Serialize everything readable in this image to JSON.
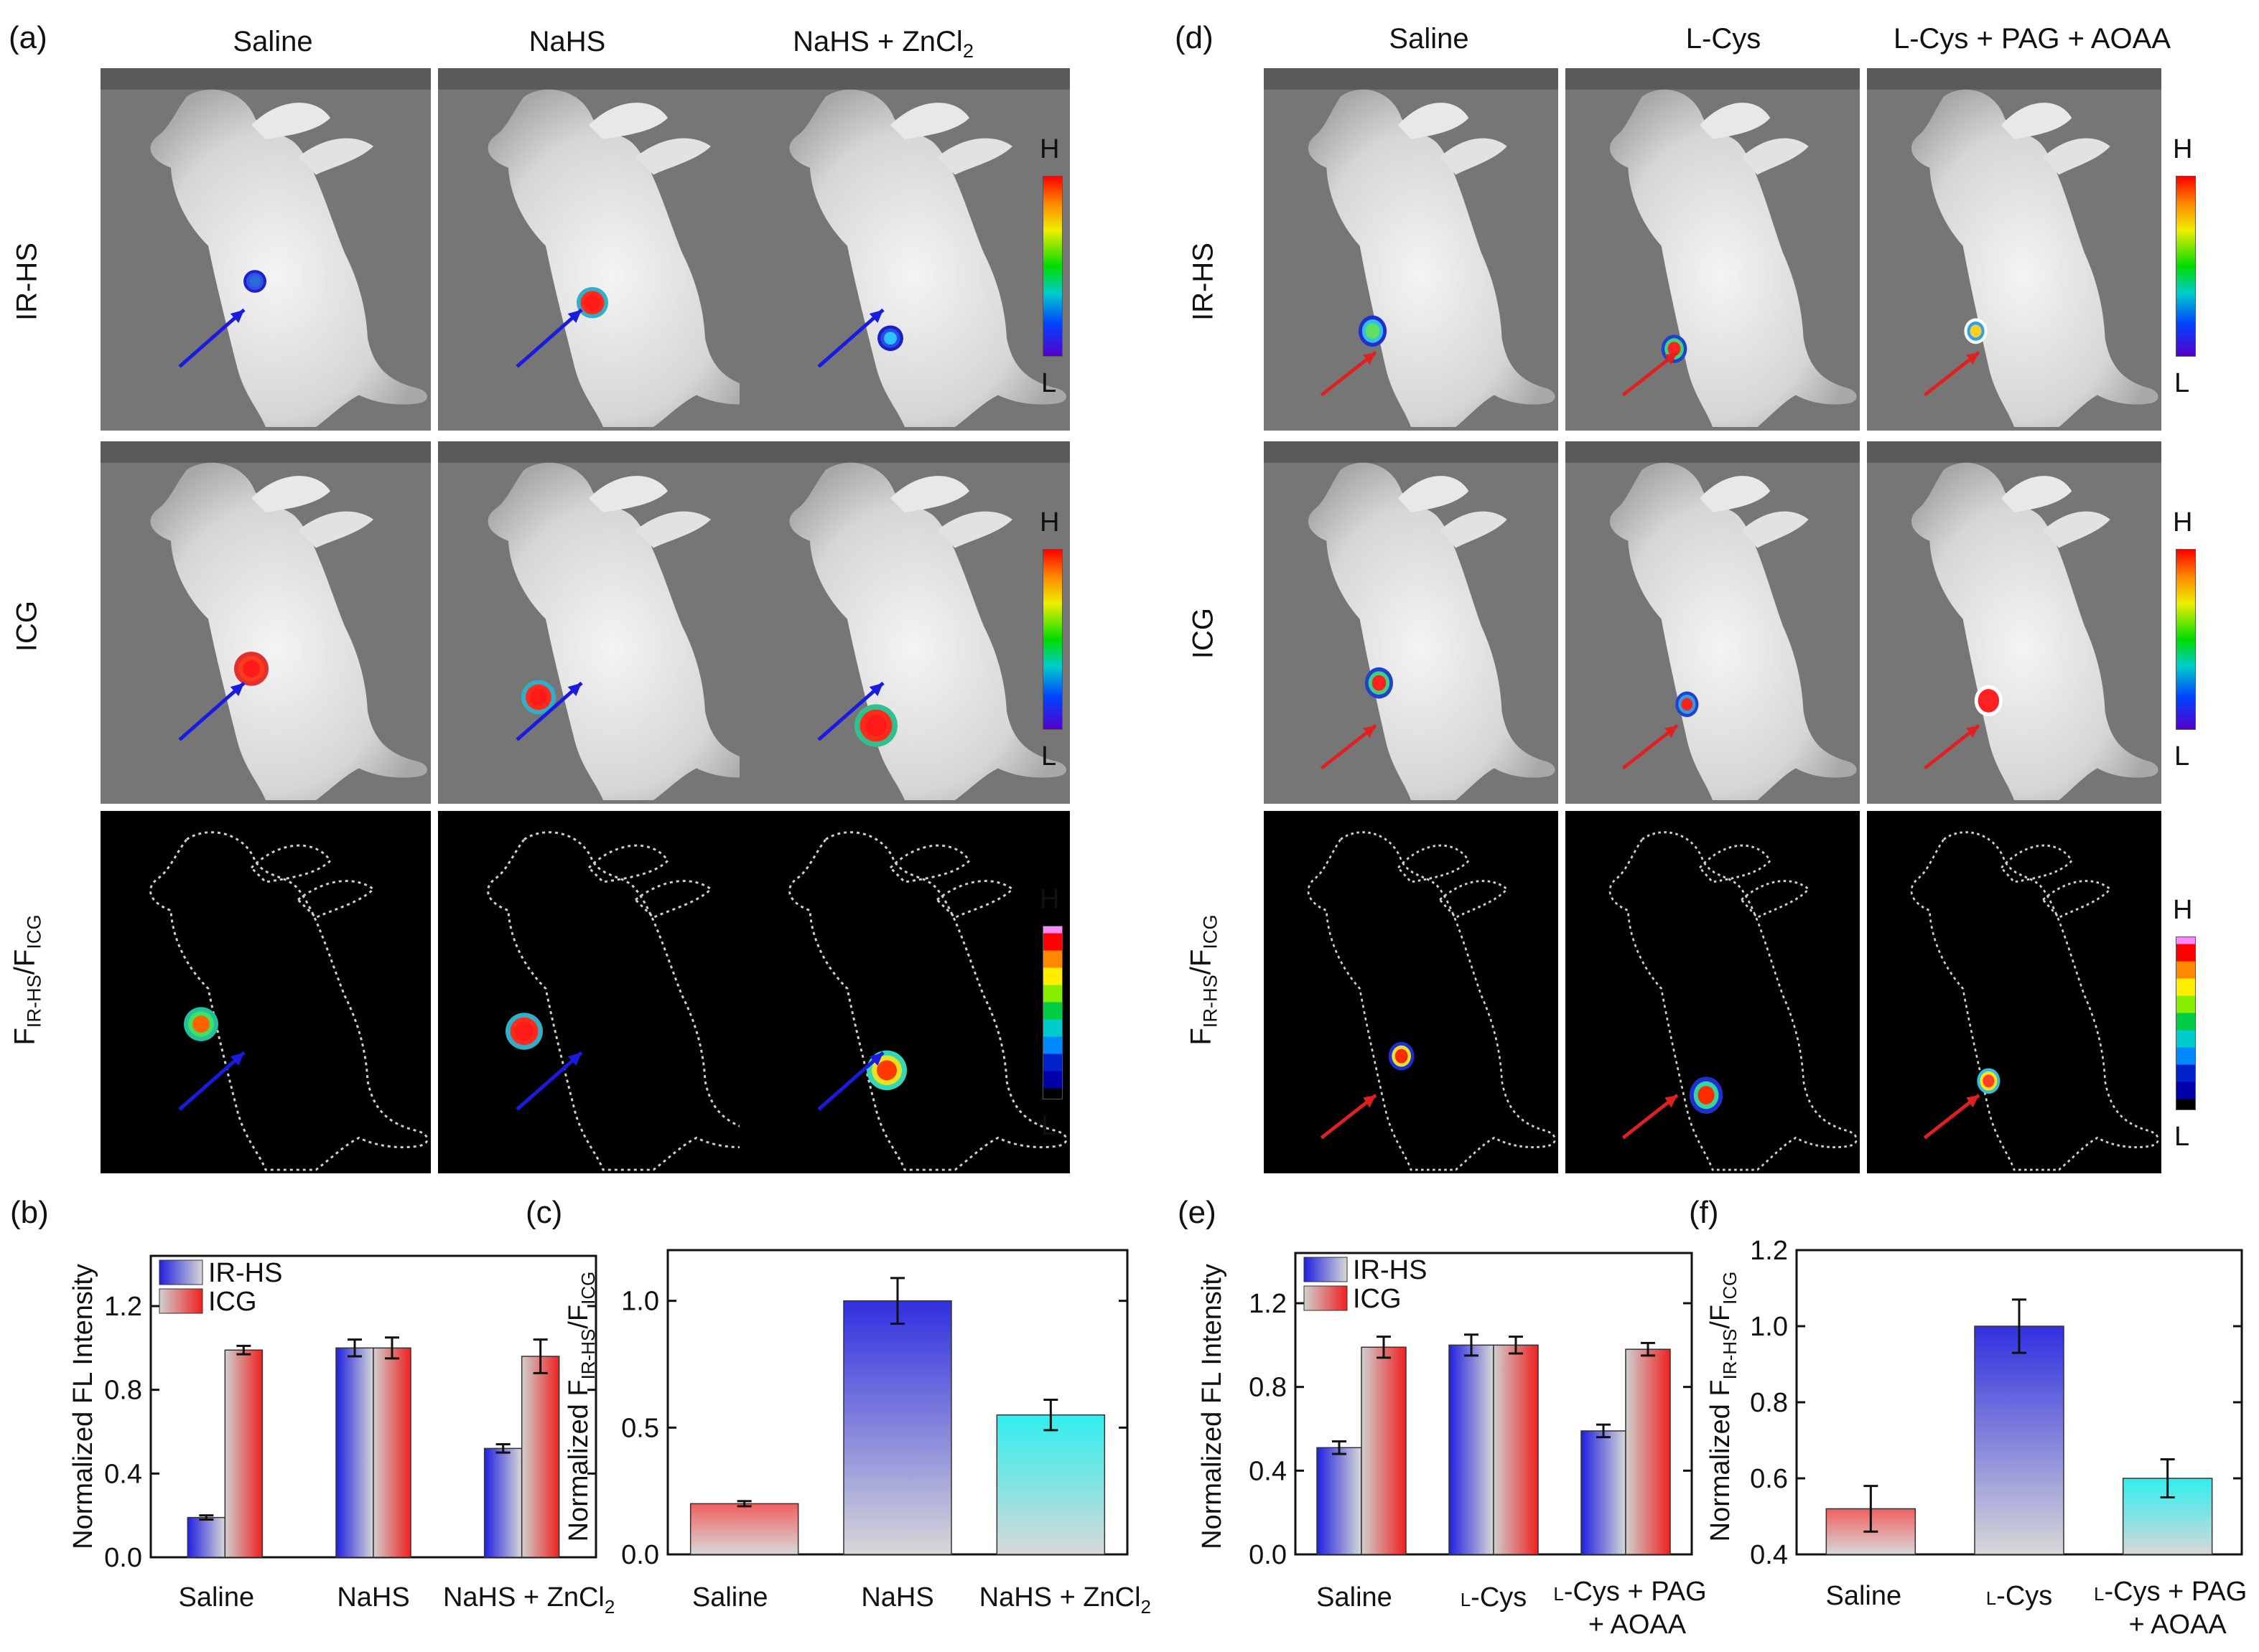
{
  "panel_labels": {
    "a": "(a)",
    "b": "(b)",
    "c": "(c)",
    "d": "(d)",
    "e": "(e)",
    "f": "(f)"
  },
  "left_columns": [
    "Saline",
    "NaHS",
    "NaHS + ZnCl"
  ],
  "left_columns_sub": [
    "",
    "",
    "2"
  ],
  "right_columns": [
    "Saline",
    "L-Cys",
    "L-Cys + PAG + AOAA"
  ],
  "rows": [
    "IR-HS",
    "ICG",
    "F"
  ],
  "ratio_label": {
    "main": "F",
    "sub1": "IR-HS",
    "slash": "/F",
    "sub2": "ICG"
  },
  "colorbar": {
    "high": "H",
    "low": "L"
  },
  "colors": {
    "arrow_left": "#1a1ae0",
    "arrow_right": "#e02020",
    "irhs_grad_from": "#2a2adc",
    "icg_grad_from": "#e83a3a",
    "bar_neutral": "#c8c8c8",
    "cyan": "#3ee8e8"
  },
  "chart_data": [
    {
      "id": "b",
      "type": "bar",
      "title": "",
      "ylabel": "Normalized FL Intensity",
      "categories": [
        "Saline",
        "NaHS",
        "NaHS + ZnCl2"
      ],
      "series": [
        {
          "name": "IR-HS",
          "values": [
            0.19,
            1.0,
            0.52
          ],
          "errors": [
            0.01,
            0.04,
            0.02
          ]
        },
        {
          "name": "ICG",
          "values": [
            0.99,
            1.0,
            0.96
          ],
          "errors": [
            0.02,
            0.05,
            0.08
          ]
        }
      ],
      "ylim": [
        0,
        1.44
      ],
      "yticks": [
        0.0,
        0.4,
        0.8,
        1.2
      ],
      "ytick_labels": [
        "0.0",
        "0.4",
        "0.8",
        "1.2"
      ]
    },
    {
      "id": "c",
      "type": "bar",
      "ylabel": "Normalized F IR-HS/F ICG",
      "categories": [
        "Saline",
        "NaHS",
        "NaHS + ZnCl2"
      ],
      "values": [
        0.2,
        1.0,
        0.55
      ],
      "errors": [
        0.01,
        0.09,
        0.06
      ],
      "ylim": [
        0,
        1.2
      ],
      "yticks": [
        0.0,
        0.5,
        1.0
      ],
      "ytick_labels": [
        "0.0",
        "0.5",
        "1.0"
      ]
    },
    {
      "id": "e",
      "type": "bar",
      "ylabel": "Normalized FL Intensity",
      "categories": [
        "Saline",
        "L-Cys",
        "L-Cys + PAG + AOAA"
      ],
      "series": [
        {
          "name": "IR-HS",
          "values": [
            0.51,
            1.0,
            0.59
          ],
          "errors": [
            0.03,
            0.05,
            0.03
          ]
        },
        {
          "name": "ICG",
          "values": [
            0.99,
            1.0,
            0.98
          ],
          "errors": [
            0.05,
            0.04,
            0.03
          ]
        }
      ],
      "ylim": [
        0,
        1.44
      ],
      "yticks": [
        0.0,
        0.4,
        0.8,
        1.2
      ],
      "ytick_labels": [
        "0.0",
        "0.4",
        "0.8",
        "1.2"
      ]
    },
    {
      "id": "f",
      "type": "bar",
      "ylabel": "Normalized F IR-HS/F ICG",
      "categories": [
        "Saline",
        "L-Cys",
        "L-Cys + PAG + AOAA"
      ],
      "values": [
        0.52,
        1.0,
        0.6
      ],
      "errors": [
        0.06,
        0.07,
        0.05
      ],
      "ylim": [
        0.4,
        1.2
      ],
      "yticks": [
        0.4,
        0.6,
        0.8,
        1.0,
        1.2
      ],
      "ytick_labels": [
        "0.4",
        "0.6",
        "0.8",
        "1.0",
        "1.2"
      ]
    }
  ],
  "tick_text": {
    "b": {
      "Saline": "Saline",
      "NaHS": "NaHS",
      "NaHS_Zn": "NaHS + ZnCl",
      "sub": "2"
    },
    "e": {
      "Saline": "Saline",
      "LCys": "-Cys",
      "LCysPAG_1": "-Cys + PAG",
      "LCysPAG_2": "+ AOAA",
      "L": "L"
    }
  },
  "legend": [
    "IR-HS",
    "ICG"
  ]
}
